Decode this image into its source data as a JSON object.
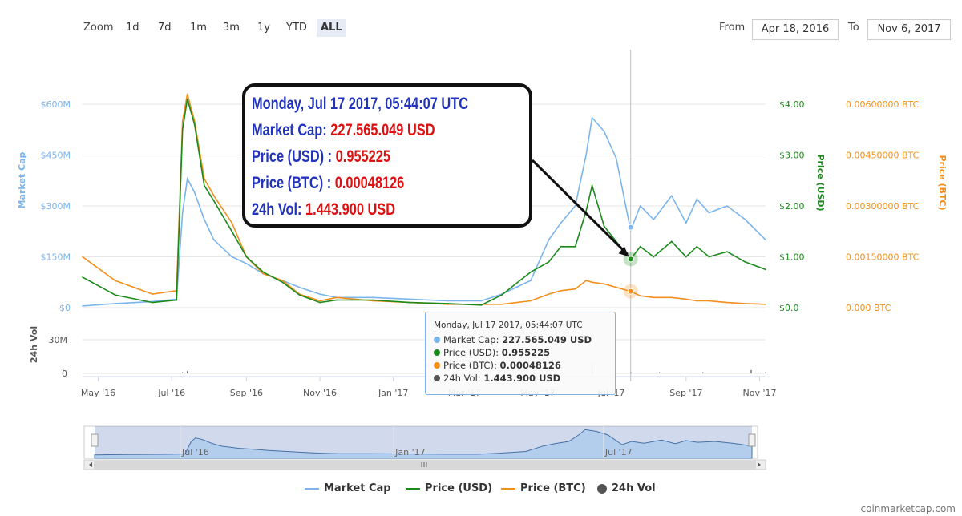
{
  "zoom": {
    "label": "Zoom",
    "buttons": [
      "1d",
      "7d",
      "1m",
      "3m",
      "1y",
      "YTD",
      "ALL"
    ],
    "selected": "ALL"
  },
  "range": {
    "from_label": "From",
    "from_value": "Apr 18, 2016",
    "to_label": "To",
    "to_value": "Nov 6, 2017"
  },
  "callout": {
    "line1": "Monday, Jul 17 2017, 05:44:07 UTC",
    "cap_label": "Market Cap: ",
    "cap_value": "227.565.049 USD",
    "usd_label": "Price (USD) : ",
    "usd_value": "0.955225",
    "btc_label": "Price (BTC) : ",
    "btc_value": "0.00048126",
    "vol_label": "24h Vol: ",
    "vol_value": "1.443.900 USD",
    "title_color": "#2233bb",
    "value_color": "#dd1111"
  },
  "tooltip": {
    "header": "Monday, Jul 17 2017, 05:44:07 UTC",
    "rows": [
      {
        "label": "Market Cap: ",
        "value": "227.565.049 USD",
        "color": "#7cb5ec"
      },
      {
        "label": "Price (USD): ",
        "value": "0.955225",
        "color": "#1b8a1b"
      },
      {
        "label": "Price (BTC): ",
        "value": "0.00048126",
        "color": "#f28f1c"
      },
      {
        "label": "24h Vol: ",
        "value": "1.443.900 USD",
        "color": "#555555"
      }
    ]
  },
  "legend": [
    {
      "name": "Market Cap",
      "color": "#7cb5ec",
      "shape": "line"
    },
    {
      "name": "Price (USD)",
      "color": "#1b8a1b",
      "shape": "line"
    },
    {
      "name": "Price (BTC)",
      "color": "#f28f1c",
      "shape": "line"
    },
    {
      "name": "24h Vol",
      "color": "#555555",
      "shape": "circle"
    }
  ],
  "credit": "coinmarketcap.com",
  "chart_data": {
    "type": "line",
    "x_range": [
      "2016-04-18",
      "2017-11-06"
    ],
    "x_ticks": [
      "May '16",
      "Jul '16",
      "Sep '16",
      "Nov '16",
      "Jan '17",
      "Mar '17",
      "May '17",
      "Jul '17",
      "Sep '17",
      "Nov '17"
    ],
    "axes": {
      "market_cap": {
        "label": "Market Cap",
        "ticks": [
          "$0",
          "$150M",
          "$300M",
          "$450M",
          "$600M"
        ],
        "color": "#7cb5ec"
      },
      "price_usd": {
        "label": "Price (USD)",
        "ticks": [
          "$0.0",
          "$1.00",
          "$2.00",
          "$3.00",
          "$4.00"
        ],
        "color": "#1b8a1b"
      },
      "price_btc": {
        "label": "Price (BTC)",
        "ticks": [
          "0.000 BTC",
          "0.00150000 BTC",
          "0.00300000 BTC",
          "0.00450000 BTC",
          "0.00600000 BTC"
        ],
        "color": "#f28f1c"
      },
      "volume": {
        "label": "24h Vol",
        "ticks": [
          "0",
          "30M"
        ]
      }
    },
    "ranges": {
      "market_cap_M": [
        0,
        600
      ],
      "price_usd": [
        0,
        4
      ],
      "price_btc": [
        0,
        0.006
      ],
      "volume_M": [
        0,
        30
      ]
    },
    "series": [
      {
        "name": "Market Cap",
        "unit": "M USD",
        "color": "#7cb5ec",
        "points": [
          [
            "2016-04-18",
            5
          ],
          [
            "2016-05-15",
            12
          ],
          [
            "2016-06-15",
            18
          ],
          [
            "2016-07-05",
            25
          ],
          [
            "2016-07-10",
            280
          ],
          [
            "2016-07-14",
            380
          ],
          [
            "2016-07-20",
            340
          ],
          [
            "2016-07-28",
            260
          ],
          [
            "2016-08-05",
            200
          ],
          [
            "2016-08-20",
            150
          ],
          [
            "2016-09-01",
            130
          ],
          [
            "2016-09-15",
            100
          ],
          [
            "2016-10-01",
            80
          ],
          [
            "2016-10-15",
            60
          ],
          [
            "2016-11-01",
            40
          ],
          [
            "2016-11-15",
            30
          ],
          [
            "2016-12-15",
            30
          ],
          [
            "2017-01-15",
            25
          ],
          [
            "2017-02-15",
            20
          ],
          [
            "2017-03-15",
            20
          ],
          [
            "2017-04-01",
            40
          ],
          [
            "2017-04-25",
            80
          ],
          [
            "2017-05-10",
            200
          ],
          [
            "2017-05-20",
            250
          ],
          [
            "2017-06-01",
            300
          ],
          [
            "2017-06-10",
            450
          ],
          [
            "2017-06-15",
            560
          ],
          [
            "2017-06-25",
            520
          ],
          [
            "2017-07-05",
            440
          ],
          [
            "2017-07-17",
            227.6
          ],
          [
            "2017-07-25",
            300
          ],
          [
            "2017-08-05",
            260
          ],
          [
            "2017-08-20",
            330
          ],
          [
            "2017-09-01",
            250
          ],
          [
            "2017-09-10",
            320
          ],
          [
            "2017-09-20",
            280
          ],
          [
            "2017-10-05",
            300
          ],
          [
            "2017-10-20",
            260
          ],
          [
            "2017-11-06",
            200
          ]
        ]
      },
      {
        "name": "Price (USD)",
        "unit": "USD",
        "color": "#1b8a1b",
        "points": [
          [
            "2016-04-18",
            0.6
          ],
          [
            "2016-05-15",
            0.25
          ],
          [
            "2016-06-15",
            0.1
          ],
          [
            "2016-07-05",
            0.15
          ],
          [
            "2016-07-10",
            3.5
          ],
          [
            "2016-07-14",
            4.1
          ],
          [
            "2016-07-20",
            3.6
          ],
          [
            "2016-07-28",
            2.4
          ],
          [
            "2016-08-05",
            2.1
          ],
          [
            "2016-08-20",
            1.5
          ],
          [
            "2016-09-01",
            1.0
          ],
          [
            "2016-09-15",
            0.7
          ],
          [
            "2016-10-01",
            0.5
          ],
          [
            "2016-10-15",
            0.25
          ],
          [
            "2016-11-01",
            0.1
          ],
          [
            "2016-11-15",
            0.15
          ],
          [
            "2016-12-15",
            0.15
          ],
          [
            "2017-01-15",
            0.1
          ],
          [
            "2017-02-15",
            0.08
          ],
          [
            "2017-03-15",
            0.05
          ],
          [
            "2017-04-01",
            0.25
          ],
          [
            "2017-04-25",
            0.7
          ],
          [
            "2017-05-10",
            0.9
          ],
          [
            "2017-05-20",
            1.2
          ],
          [
            "2017-06-01",
            1.2
          ],
          [
            "2017-06-10",
            1.9
          ],
          [
            "2017-06-15",
            2.4
          ],
          [
            "2017-06-25",
            1.6
          ],
          [
            "2017-07-05",
            1.3
          ],
          [
            "2017-07-17",
            0.955
          ],
          [
            "2017-07-25",
            1.2
          ],
          [
            "2017-08-05",
            1.0
          ],
          [
            "2017-08-20",
            1.3
          ],
          [
            "2017-09-01",
            1.0
          ],
          [
            "2017-09-10",
            1.2
          ],
          [
            "2017-09-20",
            1.0
          ],
          [
            "2017-10-05",
            1.1
          ],
          [
            "2017-10-20",
            0.9
          ],
          [
            "2017-11-06",
            0.75
          ]
        ]
      },
      {
        "name": "Price (BTC)",
        "unit": "BTC",
        "color": "#f28f1c",
        "points": [
          [
            "2016-04-18",
            0.0015
          ],
          [
            "2016-05-15",
            0.0008
          ],
          [
            "2016-06-15",
            0.0004
          ],
          [
            "2016-07-05",
            0.0005
          ],
          [
            "2016-07-10",
            0.0055
          ],
          [
            "2016-07-14",
            0.0063
          ],
          [
            "2016-07-20",
            0.0055
          ],
          [
            "2016-07-28",
            0.0038
          ],
          [
            "2016-08-05",
            0.0033
          ],
          [
            "2016-08-20",
            0.0025
          ],
          [
            "2016-09-01",
            0.0015
          ],
          [
            "2016-09-15",
            0.001
          ],
          [
            "2016-10-01",
            0.0008
          ],
          [
            "2016-10-15",
            0.0004
          ],
          [
            "2016-11-01",
            0.0002
          ],
          [
            "2016-11-15",
            0.0003
          ],
          [
            "2016-12-15",
            0.0002
          ],
          [
            "2017-01-15",
            0.00015
          ],
          [
            "2017-02-15",
            0.0001
          ],
          [
            "2017-03-15",
            0.0001
          ],
          [
            "2017-04-01",
            0.0001
          ],
          [
            "2017-04-25",
            0.0002
          ],
          [
            "2017-05-10",
            0.0004
          ],
          [
            "2017-05-20",
            0.0005
          ],
          [
            "2017-06-01",
            0.00055
          ],
          [
            "2017-06-10",
            0.0008
          ],
          [
            "2017-06-15",
            0.00075
          ],
          [
            "2017-06-25",
            0.0007
          ],
          [
            "2017-07-05",
            0.0006
          ],
          [
            "2017-07-17",
            0.00048
          ],
          [
            "2017-07-25",
            0.00035
          ],
          [
            "2017-08-05",
            0.0003
          ],
          [
            "2017-08-20",
            0.0003
          ],
          [
            "2017-09-01",
            0.00025
          ],
          [
            "2017-09-10",
            0.0002
          ],
          [
            "2017-09-20",
            0.0002
          ],
          [
            "2017-10-05",
            0.00015
          ],
          [
            "2017-10-20",
            0.00012
          ],
          [
            "2017-11-06",
            0.0001
          ]
        ]
      },
      {
        "name": "24h Vol",
        "unit": "M USD",
        "color": "#555555",
        "points": [
          [
            "2016-07-10",
            1
          ],
          [
            "2016-07-14",
            2
          ],
          [
            "2017-05-20",
            1
          ],
          [
            "2017-06-15",
            8
          ],
          [
            "2017-07-17",
            1.44
          ],
          [
            "2017-08-10",
            1
          ],
          [
            "2017-09-15",
            1
          ],
          [
            "2017-10-25",
            3
          ],
          [
            "2017-11-06",
            1
          ]
        ]
      }
    ],
    "navigator": {
      "x_ticks": [
        "Jul '16",
        "Jan '17",
        "Jul '17"
      ]
    },
    "hover": {
      "date": "2017-07-17",
      "market_cap_M": 227.565049,
      "price_usd": 0.955225,
      "price_btc": 0.00048126,
      "volume_M": 1.4439
    }
  }
}
